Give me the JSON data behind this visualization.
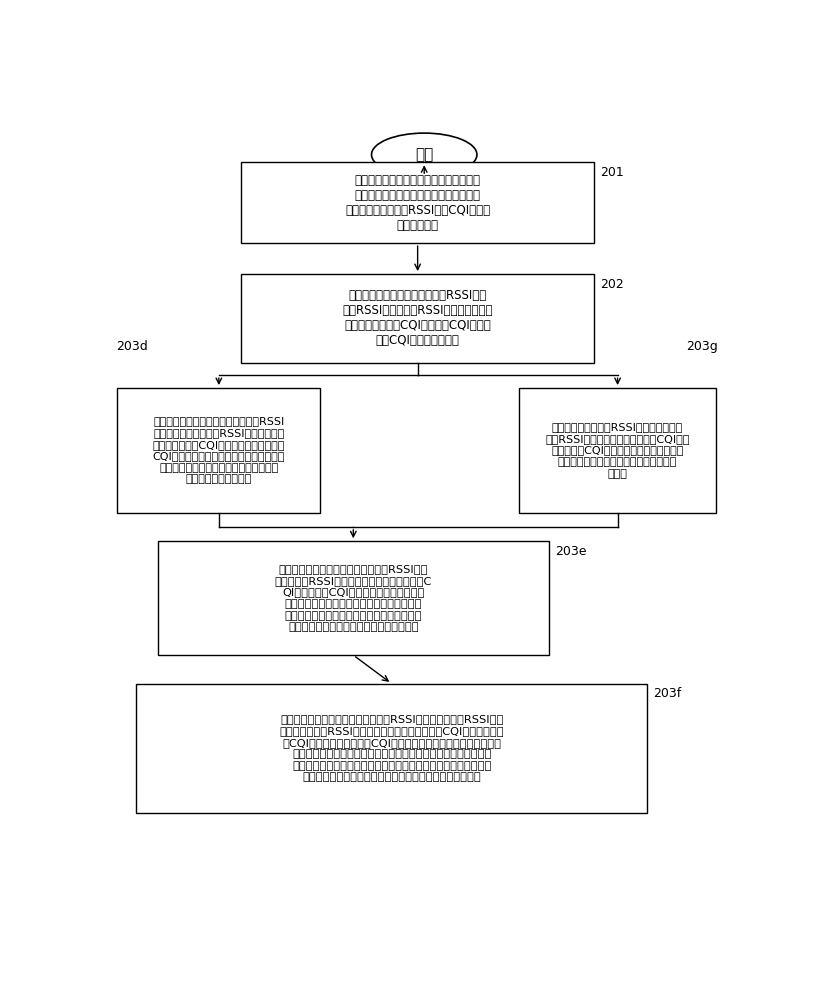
{
  "bg_color": "#ffffff",
  "line_color": "#000000",
  "box_border_color": "#000000",
  "text_color": "#000000",
  "start_label": "开始",
  "box201_text": "无线终端的调制解调器检测射频模块工作\n时的无线接收信号的信号质量以及信号强\n度，获取当前检测的RSSI值和CQI值，并\n发送给处理器",
  "box202_text": "所述处理器判断所述当前检测的RSSI值与\n第一RSSI阈值、第二RSSI阈值的大小关系\n，所述当前检测的CQI值与第一CQI阈值、\n第二CQI阈值的大小关系",
  "box203d_text": "如果所述处理器确定所述当前检测的RSSI\n值大于或等于所述第一RSSI阈值，且确定\n所述当前检测的CQI值大于或等于所述第一\nCQI阈值，所述处理器确定所述无线终端的\n所述射频模块的射频干扰低于第一干扰阈\n值，没有发生射频干扰",
  "box203g_text": "如果所述当前检测的RSSI值大于等于所述\n第一RSSI阈值，且所述当前检测的CQI值小\n于所述第二CQI阈值，所述处理器确定无线\n终端的射频模块的天线收到的信号包含干\n扰信号",
  "box203e_text": "如果所述处理器确定所述当前检测的RSSI值小\n于所述第二RSSI阈值，且确定所述当前检测的C\nQI值小于第二CQI阈值，所述处理器确定所\n述无线终端的所述射频模块的射频干扰大于第\n二干扰阈值，其中，其中，所述第二干扰阈值\n大于所述第一干扰阈值，发生严重射频干扰",
  "box203f_text": "如果所述处理器确定所述当前检测的RSSI值大于所述第二RSSI阈值\n但小于所述第一RSSI阈值，且确定所述当前检测的CQI值大于所述第\n二CQI阈值但小于所述第一CQI阈值，所述处理器确定所述无线终端\n的所述射频模块的射频干扰大于所述第一干扰阈值但小于所述第二\n干扰阈值，其中，所述第二干扰阈值大于所述第一干扰阈值，即说\n明所述射频模块当前的无线信号一般，发生一般的射频干扰",
  "label201": "201",
  "label202": "202",
  "label203d": "203d",
  "label203g": "203g",
  "label203e": "203e",
  "label203f": "203f"
}
